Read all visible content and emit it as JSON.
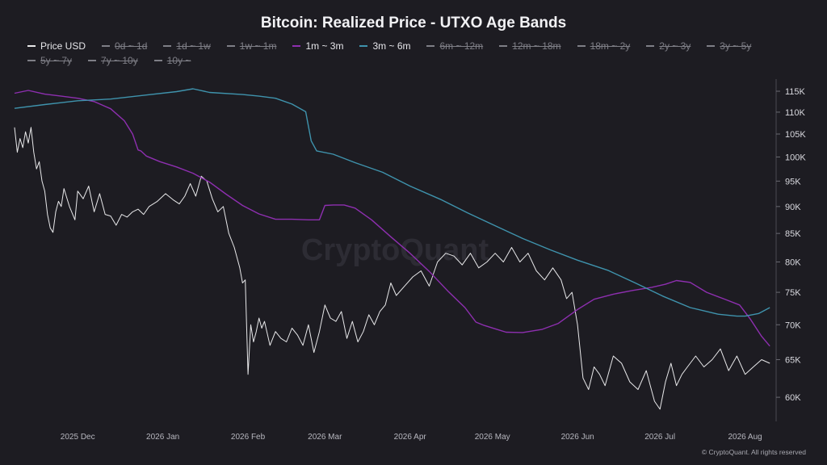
{
  "chart_data": {
    "type": "line",
    "title": "Bitcoin: Realized Price - UTXO Age Bands",
    "watermark": "CryptoQuant",
    "credit": "© CryptoQuant. All rights reserved",
    "legend": [
      {
        "label": "Price USD",
        "active": true,
        "color": "#e8e8ea"
      },
      {
        "label": "0d ~ 1d",
        "active": false,
        "color": "#7e7e86"
      },
      {
        "label": "1d ~ 1w",
        "active": false,
        "color": "#7e7e86"
      },
      {
        "label": "1w ~ 1m",
        "active": false,
        "color": "#7e7e86"
      },
      {
        "label": "1m ~ 3m",
        "active": true,
        "color": "#8e2fb0"
      },
      {
        "label": "3m ~ 6m",
        "active": true,
        "color": "#3f93ad"
      },
      {
        "label": "6m ~ 12m",
        "active": false,
        "color": "#7e7e86"
      },
      {
        "label": "12m ~ 18m",
        "active": false,
        "color": "#7e7e86"
      },
      {
        "label": "18m ~ 2y",
        "active": false,
        "color": "#7e7e86"
      },
      {
        "label": "2y ~ 3y",
        "active": false,
        "color": "#7e7e86"
      },
      {
        "label": "3y ~ 5y",
        "active": false,
        "color": "#7e7e86"
      },
      {
        "label": "5y ~ 7y",
        "active": false,
        "color": "#7e7e86"
      },
      {
        "label": "7y ~ 10y",
        "active": false,
        "color": "#7e7e86"
      },
      {
        "label": "10y ~",
        "active": false,
        "color": "#7e7e86"
      }
    ],
    "y_ticks": [
      115000,
      110000,
      105000,
      100000,
      95000,
      90000,
      85000,
      80000,
      75000,
      70000,
      65000,
      60000
    ],
    "y_tick_labels": [
      "115K",
      "110K",
      "105K",
      "100K",
      "95K",
      "90K",
      "85K",
      "80K",
      "75K",
      "70K",
      "65K",
      "60K"
    ],
    "y_scale": "log",
    "x_tick_labels": [
      {
        "label": "2025 Dec",
        "date": "2025-12-01"
      },
      {
        "label": "2026 Jan",
        "date": "2026-01-01"
      },
      {
        "label": "2026 Feb",
        "date": "2026-02-01"
      },
      {
        "label": "2026 Mar",
        "date": "2026-03-01"
      },
      {
        "label": "2026 Apr",
        "date": "2026-04-01"
      },
      {
        "label": "2026 May",
        "date": "2026-05-01"
      },
      {
        "label": "2026 Jun",
        "date": "2026-06-01"
      },
      {
        "label": "2026 Jul",
        "date": "2026-07-01"
      },
      {
        "label": "2026 Aug",
        "date": "2026-08-01"
      }
    ],
    "x_range": [
      "2025-11-08",
      "2026-08-12"
    ],
    "y_range": [
      57000,
      118000
    ],
    "series": [
      {
        "name": "Price USD",
        "color": "#e8e8ea",
        "x": [
          "2025-11-08",
          "2025-11-09",
          "2025-11-10",
          "2025-11-11",
          "2025-11-12",
          "2025-11-13",
          "2025-11-14",
          "2025-11-15",
          "2025-11-16",
          "2025-11-17",
          "2025-11-18",
          "2025-11-19",
          "2025-11-20",
          "2025-11-21",
          "2025-11-22",
          "2025-11-23",
          "2025-11-24",
          "2025-11-25",
          "2025-11-26",
          "2025-11-28",
          "2025-11-30",
          "2025-12-01",
          "2025-12-03",
          "2025-12-05",
          "2025-12-07",
          "2025-12-09",
          "2025-12-11",
          "2025-12-13",
          "2025-12-15",
          "2025-12-17",
          "2025-12-19",
          "2025-12-21",
          "2025-12-23",
          "2025-12-25",
          "2025-12-27",
          "2025-12-30",
          "2026-01-02",
          "2026-01-05",
          "2026-01-07",
          "2026-01-09",
          "2026-01-11",
          "2026-01-13",
          "2026-01-15",
          "2026-01-17",
          "2026-01-19",
          "2026-01-21",
          "2026-01-23",
          "2026-01-25",
          "2026-01-27",
          "2026-01-29",
          "2026-01-30",
          "2026-01-31",
          "2026-02-01",
          "2026-02-02",
          "2026-02-03",
          "2026-02-04",
          "2026-02-05",
          "2026-02-06",
          "2026-02-07",
          "2026-02-09",
          "2026-02-11",
          "2026-02-13",
          "2026-02-15",
          "2026-02-17",
          "2026-02-19",
          "2026-02-21",
          "2026-02-23",
          "2026-02-25",
          "2026-02-27",
          "2026-03-01",
          "2026-03-03",
          "2026-03-05",
          "2026-03-07",
          "2026-03-09",
          "2026-03-11",
          "2026-03-13",
          "2026-03-15",
          "2026-03-17",
          "2026-03-19",
          "2026-03-21",
          "2026-03-23",
          "2026-03-25",
          "2026-03-27",
          "2026-03-30",
          "2026-04-02",
          "2026-04-05",
          "2026-04-08",
          "2026-04-11",
          "2026-04-14",
          "2026-04-17",
          "2026-04-20",
          "2026-04-23",
          "2026-04-26",
          "2026-04-29",
          "2026-05-02",
          "2026-05-05",
          "2026-05-08",
          "2026-05-11",
          "2026-05-14",
          "2026-05-17",
          "2026-05-20",
          "2026-05-23",
          "2026-05-26",
          "2026-05-28",
          "2026-05-30",
          "2026-06-01",
          "2026-06-03",
          "2026-06-05",
          "2026-06-07",
          "2026-06-09",
          "2026-06-11",
          "2026-06-14",
          "2026-06-17",
          "2026-06-20",
          "2026-06-23",
          "2026-06-26",
          "2026-06-29",
          "2026-07-01",
          "2026-07-03",
          "2026-07-05",
          "2026-07-07",
          "2026-07-09",
          "2026-07-11",
          "2026-07-14",
          "2026-07-17",
          "2026-07-20",
          "2026-07-23",
          "2026-07-26",
          "2026-07-29",
          "2026-08-01",
          "2026-08-04",
          "2026-08-07",
          "2026-08-10"
        ],
        "values": [
          106500,
          101000,
          104000,
          102000,
          105500,
          103000,
          106500,
          101000,
          97500,
          99000,
          95000,
          93000,
          88500,
          86000,
          85200,
          89000,
          91000,
          90000,
          93500,
          90000,
          87500,
          93000,
          91500,
          94000,
          89000,
          92500,
          88500,
          88200,
          86500,
          88500,
          88000,
          89000,
          89500,
          88500,
          90000,
          91000,
          92500,
          91200,
          90500,
          92000,
          94500,
          92000,
          96000,
          95000,
          91500,
          89000,
          90000,
          85000,
          82500,
          79000,
          76500,
          77000,
          63000,
          70000,
          67500,
          69000,
          71000,
          69500,
          70500,
          67000,
          69000,
          68000,
          67500,
          69500,
          68500,
          67000,
          70000,
          66000,
          69000,
          73000,
          71000,
          70500,
          72000,
          68000,
          70500,
          67500,
          69000,
          71500,
          70000,
          72000,
          73000,
          76500,
          74500,
          76000,
          77500,
          78500,
          76000,
          80000,
          81500,
          81000,
          79500,
          81500,
          79000,
          80000,
          81500,
          80000,
          82500,
          80000,
          81500,
          78500,
          77000,
          79000,
          77000,
          74000,
          75000,
          70000,
          62500,
          61000,
          64000,
          63000,
          61500,
          65500,
          64500,
          62000,
          61000,
          63500,
          59500,
          58500,
          62000,
          64500,
          61500,
          63000,
          64000,
          65500,
          64000,
          65000,
          66500,
          63500,
          65500,
          63000,
          64000,
          65000,
          64500
        ]
      },
      {
        "name": "1m ~ 3m",
        "color": "#8e2fb0",
        "x": [
          "2025-11-08",
          "2025-11-13",
          "2025-11-19",
          "2025-11-25",
          "2025-12-01",
          "2025-12-07",
          "2025-12-13",
          "2025-12-18",
          "2025-12-21",
          "2025-12-23",
          "2025-12-24",
          "2025-12-26",
          "2025-12-31",
          "2026-01-06",
          "2026-01-12",
          "2026-01-18",
          "2026-01-24",
          "2026-01-30",
          "2026-02-05",
          "2026-02-11",
          "2026-02-17",
          "2026-02-23",
          "2026-02-27",
          "2026-03-01",
          "2026-03-04",
          "2026-03-08",
          "2026-03-12",
          "2026-03-18",
          "2026-03-25",
          "2026-04-01",
          "2026-04-08",
          "2026-04-15",
          "2026-04-21",
          "2026-04-25",
          "2026-04-28",
          "2026-05-02",
          "2026-05-06",
          "2026-05-12",
          "2026-05-19",
          "2026-05-25",
          "2026-06-01",
          "2026-06-07",
          "2026-06-14",
          "2026-06-21",
          "2026-06-28",
          "2026-07-03",
          "2026-07-07",
          "2026-07-12",
          "2026-07-18",
          "2026-07-24",
          "2026-07-30",
          "2026-08-03",
          "2026-08-07",
          "2026-08-10"
        ],
        "values": [
          114500,
          115200,
          114300,
          113800,
          113300,
          112500,
          110800,
          108000,
          105000,
          101500,
          101300,
          100200,
          99000,
          97900,
          96600,
          94800,
          92400,
          90200,
          88600,
          87600,
          87600,
          87500,
          87500,
          90200,
          90300,
          90300,
          89700,
          87500,
          84400,
          81500,
          78400,
          75100,
          72600,
          70400,
          69900,
          69400,
          68900,
          68850,
          69300,
          70200,
          72300,
          73900,
          74700,
          75300,
          75800,
          76300,
          76900,
          76600,
          75000,
          74000,
          73000,
          70800,
          68300,
          66900
        ]
      },
      {
        "name": "3m ~ 6m",
        "color": "#3f93ad",
        "x": [
          "2025-11-08",
          "2025-11-19",
          "2025-12-01",
          "2025-12-13",
          "2025-12-25",
          "2026-01-06",
          "2026-01-12",
          "2026-01-18",
          "2026-01-30",
          "2026-02-05",
          "2026-02-11",
          "2026-02-17",
          "2026-02-22",
          "2026-02-24",
          "2026-02-26",
          "2026-03-04",
          "2026-03-12",
          "2026-03-22",
          "2026-04-01",
          "2026-04-12",
          "2026-04-22",
          "2026-05-02",
          "2026-05-12",
          "2026-05-22",
          "2026-06-01",
          "2026-06-12",
          "2026-06-22",
          "2026-07-02",
          "2026-07-12",
          "2026-07-22",
          "2026-07-29",
          "2026-08-01",
          "2026-08-06",
          "2026-08-10"
        ],
        "values": [
          110900,
          111800,
          112700,
          113100,
          114000,
          114900,
          115600,
          114700,
          114200,
          113800,
          113300,
          111900,
          110100,
          103500,
          101300,
          100600,
          98800,
          96800,
          94000,
          91400,
          88800,
          86400,
          84100,
          82100,
          80300,
          78600,
          76500,
          74400,
          72600,
          71600,
          71300,
          71300,
          71700,
          72600
        ]
      }
    ]
  }
}
